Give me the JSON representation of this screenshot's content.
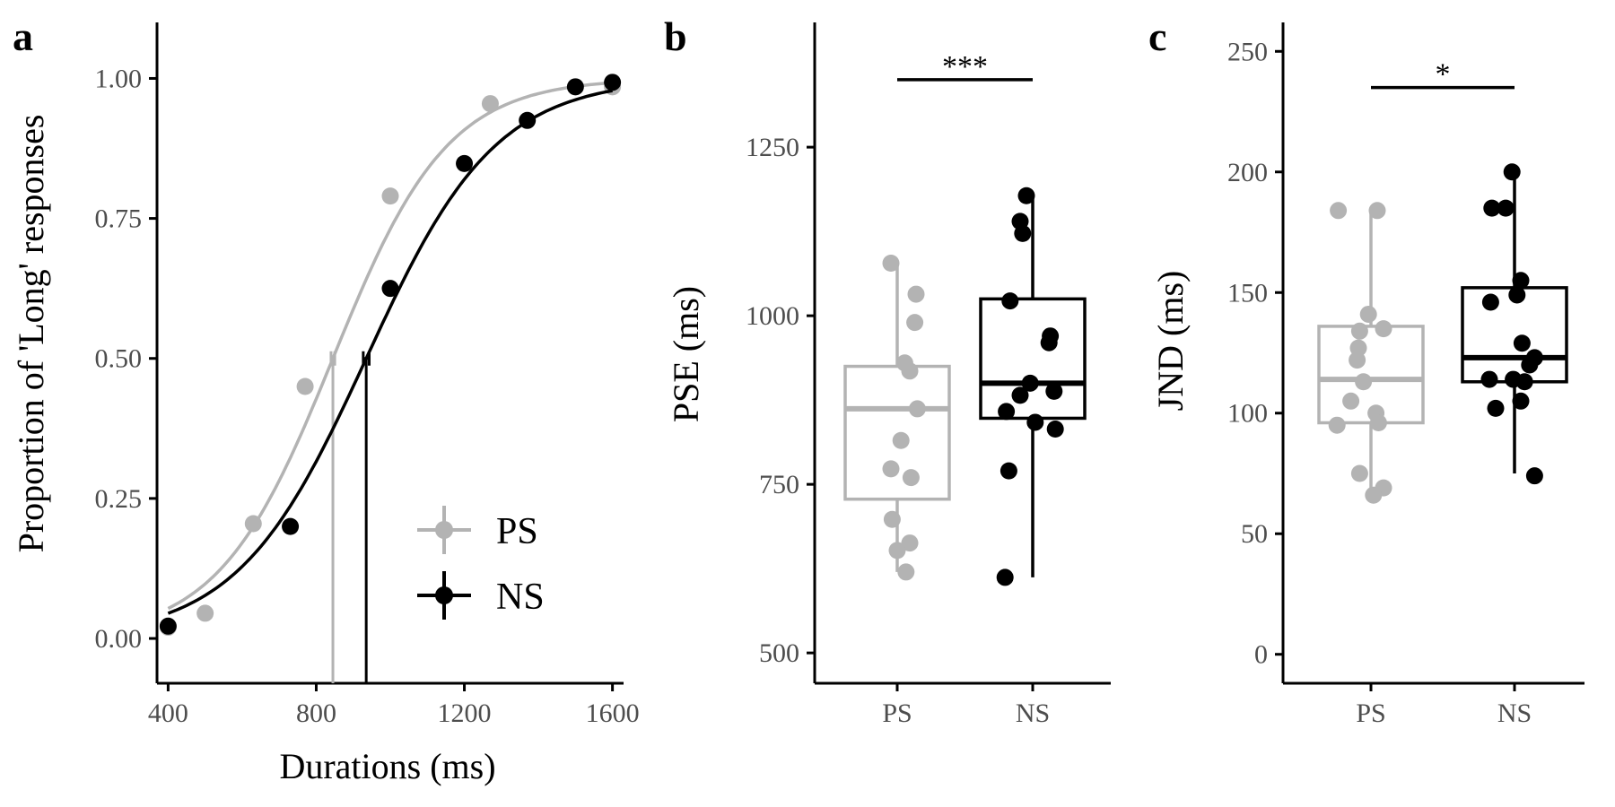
{
  "colors": {
    "PS": "#b3b3b3",
    "NS": "#000000",
    "axis": "#000000",
    "tick_text": "#4d4d4d"
  },
  "chart_data": [
    {
      "panel": "a",
      "type": "line",
      "xlabel": "Durations (ms)",
      "ylabel": "Proportion of 'Long' responses",
      "xlim": [
        370,
        1630
      ],
      "ylim": [
        -0.08,
        1.1
      ],
      "xticks": [
        400,
        800,
        1200,
        1600
      ],
      "xtick_labels": [
        "400",
        "800",
        "1200",
        "1600"
      ],
      "yticks": [
        0,
        0.25,
        0.5,
        0.75,
        1.0
      ],
      "ytick_labels": [
        "0.00",
        "0.25",
        "0.50",
        "0.75",
        "1.00"
      ],
      "grid": false,
      "legend": {
        "placement": "bottom-right",
        "entries": [
          "PS",
          "NS"
        ]
      },
      "series": [
        {
          "name": "PS",
          "points": {
            "x": [
              400,
              500,
              630,
              770,
              1000,
              1270,
              1600
            ],
            "y": [
              0.02,
              0.045,
              0.205,
              0.45,
              0.79,
              0.955,
              0.985
            ]
          },
          "fit": {
            "pse": 845,
            "slope": 155
          },
          "pse_marker": {
            "x": 845,
            "err": 5
          }
        },
        {
          "name": "NS",
          "points": {
            "x": [
              400,
              730,
              1000,
              1200,
              1370,
              1500,
              1600
            ],
            "y": [
              0.022,
              0.2,
              0.625,
              0.848,
              0.925,
              0.985,
              0.993
            ]
          },
          "fit": {
            "pse": 935,
            "slope": 175
          },
          "pse_marker": {
            "x": 935,
            "err": 8
          }
        }
      ]
    },
    {
      "panel": "b",
      "type": "box",
      "ylabel": "PSE (ms)",
      "categories": [
        "PS",
        "NS"
      ],
      "ylim": [
        455,
        1435
      ],
      "yticks": [
        500,
        750,
        1000,
        1250
      ],
      "ytick_labels": [
        "500",
        "750",
        "1000",
        "1250"
      ],
      "significance": {
        "label": "***",
        "y": 1350
      },
      "series": [
        {
          "name": "PS",
          "box": {
            "whisker_low": 620,
            "q1": 728,
            "median": 862,
            "q3": 925,
            "whisker_high": 1078
          },
          "points": [
            {
              "dx": -0.05,
              "y": 1078
            },
            {
              "dx": 0.15,
              "y": 1032
            },
            {
              "dx": 0.14,
              "y": 990
            },
            {
              "dx": 0.06,
              "y": 930
            },
            {
              "dx": 0.1,
              "y": 918
            },
            {
              "dx": 0.16,
              "y": 862
            },
            {
              "dx": 0.03,
              "y": 815
            },
            {
              "dx": -0.05,
              "y": 773
            },
            {
              "dx": 0.11,
              "y": 760
            },
            {
              "dx": -0.04,
              "y": 698
            },
            {
              "dx": 0.1,
              "y": 663
            },
            {
              "dx": 0.0,
              "y": 652
            },
            {
              "dx": 0.07,
              "y": 620
            }
          ]
        },
        {
          "name": "NS",
          "box": {
            "whisker_low": 612,
            "q1": 848,
            "median": 900,
            "q3": 1025,
            "whisker_high": 1178
          },
          "points": [
            {
              "dx": -0.05,
              "y": 1178
            },
            {
              "dx": -0.1,
              "y": 1140
            },
            {
              "dx": -0.08,
              "y": 1122
            },
            {
              "dx": -0.18,
              "y": 1022
            },
            {
              "dx": 0.14,
              "y": 970
            },
            {
              "dx": 0.13,
              "y": 960
            },
            {
              "dx": -0.02,
              "y": 900
            },
            {
              "dx": 0.17,
              "y": 888
            },
            {
              "dx": -0.1,
              "y": 882
            },
            {
              "dx": -0.21,
              "y": 858
            },
            {
              "dx": 0.02,
              "y": 842
            },
            {
              "dx": 0.18,
              "y": 832
            },
            {
              "dx": -0.19,
              "y": 770
            },
            {
              "dx": -0.22,
              "y": 612
            }
          ]
        }
      ]
    },
    {
      "panel": "c",
      "type": "box",
      "ylabel": "JND (ms)",
      "categories": [
        "PS",
        "NS"
      ],
      "ylim": [
        -12,
        262
      ],
      "yticks": [
        0,
        50,
        100,
        150,
        200,
        250
      ],
      "ytick_labels": [
        "0",
        "50",
        "100",
        "150",
        "200",
        "250"
      ],
      "significance": {
        "label": "*",
        "y": 235
      },
      "series": [
        {
          "name": "PS",
          "box": {
            "whisker_low": 67,
            "q1": 96,
            "median": 114,
            "q3": 136,
            "whisker_high": 184
          },
          "points": [
            {
              "dx": -0.26,
              "y": 184
            },
            {
              "dx": 0.05,
              "y": 184
            },
            {
              "dx": -0.02,
              "y": 141
            },
            {
              "dx": 0.1,
              "y": 135
            },
            {
              "dx": -0.09,
              "y": 134
            },
            {
              "dx": -0.1,
              "y": 127
            },
            {
              "dx": -0.11,
              "y": 122
            },
            {
              "dx": -0.06,
              "y": 113
            },
            {
              "dx": 0.04,
              "y": 100
            },
            {
              "dx": -0.16,
              "y": 105
            },
            {
              "dx": 0.06,
              "y": 96
            },
            {
              "dx": -0.27,
              "y": 95
            },
            {
              "dx": -0.09,
              "y": 75
            },
            {
              "dx": 0.1,
              "y": 69
            },
            {
              "dx": 0.02,
              "y": 66
            }
          ]
        },
        {
          "name": "NS",
          "box": {
            "whisker_low": 75,
            "q1": 113,
            "median": 123,
            "q3": 152,
            "whisker_high": 200
          },
          "points": [
            {
              "dx": -0.02,
              "y": 200
            },
            {
              "dx": -0.18,
              "y": 185
            },
            {
              "dx": -0.07,
              "y": 185
            },
            {
              "dx": 0.05,
              "y": 155
            },
            {
              "dx": 0.02,
              "y": 149
            },
            {
              "dx": -0.19,
              "y": 146
            },
            {
              "dx": 0.06,
              "y": 129
            },
            {
              "dx": 0.16,
              "y": 123
            },
            {
              "dx": 0.12,
              "y": 120
            },
            {
              "dx": -0.2,
              "y": 114
            },
            {
              "dx": -0.01,
              "y": 114
            },
            {
              "dx": 0.08,
              "y": 113
            },
            {
              "dx": 0.05,
              "y": 105
            },
            {
              "dx": -0.15,
              "y": 102
            },
            {
              "dx": 0.16,
              "y": 74
            }
          ]
        }
      ]
    }
  ]
}
